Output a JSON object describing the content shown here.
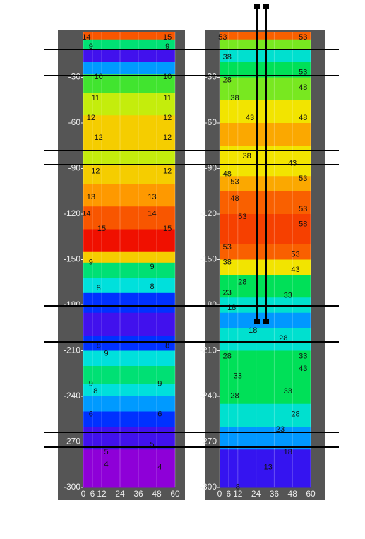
{
  "chart_data": [
    {
      "type": "contour",
      "xlim": [
        0,
        60
      ],
      "ylim": [
        -300,
        0
      ],
      "xticks": [
        0,
        6,
        12,
        24,
        36,
        48,
        60
      ],
      "yticks": [
        -30,
        -60,
        -90,
        -120,
        -150,
        -180,
        -210,
        -240,
        -270,
        -300
      ],
      "colormap": [
        "#8e00d8",
        "#0020ff",
        "#00e0ff",
        "#00e040",
        "#f0f000",
        "#ff9000",
        "#f01000"
      ],
      "clim": [
        4,
        15
      ],
      "profile": {
        "depths": [
          0,
          -5,
          -12,
          -20,
          -28,
          -40,
          -55,
          -70,
          -78,
          -88,
          -100,
          -115,
          -130,
          -145,
          -152,
          -162,
          -172,
          -185,
          -200,
          -210,
          -220,
          -232,
          -240,
          -250,
          -260,
          -275
        ],
        "values": [
          14,
          9,
          5,
          7,
          10,
          11,
          12,
          12,
          11,
          12,
          13,
          14,
          15,
          12,
          9,
          8,
          6,
          5,
          6,
          8,
          9,
          8,
          7,
          6,
          5,
          4
        ]
      },
      "labels": {
        "x": [
          2,
          55,
          5,
          55,
          10,
          55,
          8,
          55,
          5,
          55,
          10,
          55,
          8,
          55,
          5,
          45,
          2,
          45,
          12,
          55,
          5,
          45,
          10,
          45,
          10,
          55,
          15,
          5,
          50,
          8,
          5,
          50,
          15,
          45,
          15,
          50
        ],
        "y": [
          -2,
          -2,
          -8,
          -8,
          -28,
          -28,
          -42,
          -42,
          -55,
          -55,
          -68,
          -68,
          -90,
          -90,
          -107,
          -107,
          -118,
          -118,
          -128,
          -128,
          -150,
          -153,
          -167,
          -166,
          -205,
          -205,
          -210,
          -230,
          -230,
          -235,
          -250,
          -250,
          -275,
          -270,
          -283,
          -285
        ],
        "values": [
          14,
          15,
          9,
          9,
          10,
          10,
          11,
          11,
          12,
          12,
          12,
          12,
          12,
          12,
          13,
          13,
          14,
          14,
          15,
          15,
          9,
          9,
          8,
          8,
          8,
          8,
          9,
          9,
          9,
          8,
          6,
          6,
          5,
          5,
          4,
          4
        ]
      }
    },
    {
      "type": "contour",
      "xlim": [
        0,
        60
      ],
      "ylim": [
        -300,
        0
      ],
      "xticks": [
        0,
        6,
        12,
        24,
        36,
        48,
        60
      ],
      "yticks": [
        -30,
        -60,
        -90,
        -120,
        -150,
        -180,
        -210,
        -240,
        -270,
        -300
      ],
      "colormap": [
        "#8e00d8",
        "#0020ff",
        "#00e0ff",
        "#00e040",
        "#f0f000",
        "#ff9000",
        "#f01000"
      ],
      "clim": [
        10,
        58
      ],
      "profile": {
        "depths": [
          0,
          -5,
          -12,
          -20,
          -30,
          -45,
          -60,
          -75,
          -85,
          -95,
          -105,
          -120,
          -140,
          -150,
          -160,
          -175,
          -185,
          -195,
          -210,
          -230,
          -245,
          -260,
          -275
        ],
        "values": [
          53,
          38,
          28,
          33,
          38,
          43,
          48,
          43,
          43,
          48,
          53,
          55,
          53,
          43,
          33,
          28,
          23,
          28,
          33,
          33,
          28,
          23,
          15
        ]
      },
      "labels": {
        "x": [
          2,
          55,
          5,
          55,
          5,
          55,
          10,
          20,
          55,
          18,
          48,
          5,
          10,
          55,
          10,
          15,
          55,
          55,
          5,
          5,
          50,
          50,
          15,
          45,
          5,
          8,
          22,
          42,
          5,
          55,
          12,
          55,
          10,
          45,
          50,
          40,
          45,
          32,
          12
        ],
        "y": [
          -2,
          -2,
          -15,
          -25,
          -30,
          -35,
          -42,
          -55,
          -55,
          -80,
          -85,
          -92,
          -97,
          -95,
          -108,
          -120,
          -115,
          -125,
          -140,
          -150,
          -145,
          -155,
          -163,
          -172,
          -170,
          -180,
          -195,
          -200,
          -212,
          -212,
          -225,
          -220,
          -238,
          -235,
          -250,
          -260,
          -275,
          -285,
          -298
        ],
        "values": [
          53,
          53,
          38,
          53,
          28,
          48,
          38,
          43,
          48,
          38,
          43,
          48,
          53,
          53,
          48,
          53,
          53,
          58,
          53,
          38,
          53,
          43,
          28,
          33,
          23,
          18,
          18,
          28,
          28,
          33,
          33,
          43,
          28,
          33,
          28,
          23,
          18,
          13,
          8
        ]
      }
    }
  ]
}
